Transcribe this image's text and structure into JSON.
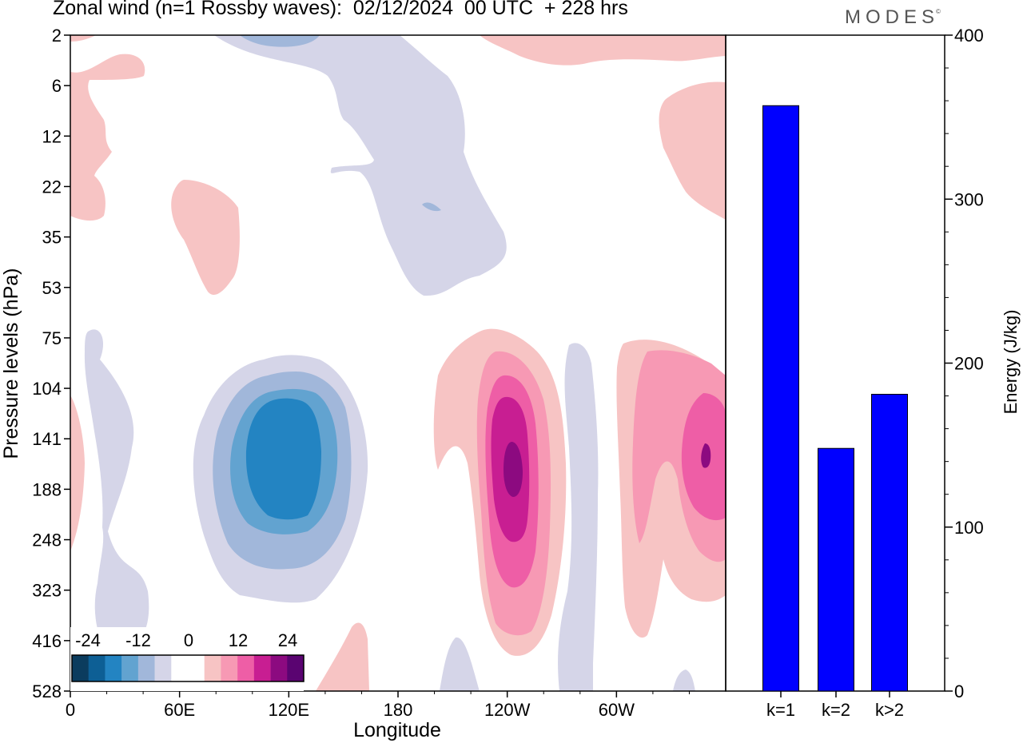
{
  "header": {
    "title": "Zonal wind (n=1 Rossby waves):  02/12/2024  00 UTC  + 228 hrs",
    "logo": "MODES",
    "logo_mark": "©"
  },
  "chart_data": [
    {
      "type": "heatmap",
      "title": "Zonal wind (n=1 Rossby waves):  02/12/2024  00 UTC  + 228 hrs",
      "xlabel": "Longitude",
      "ylabel": "Pressure levels (hPa)",
      "x_ticks": [
        "0",
        "60E",
        "120E",
        "180",
        "120W",
        "60W"
      ],
      "y_ticks": [
        "2",
        "6",
        "12",
        "22",
        "35",
        "53",
        "75",
        "104",
        "141",
        "188",
        "248",
        "323",
        "416",
        "528"
      ],
      "y_scale": "log",
      "colorbar": {
        "tick_labels": [
          "-24",
          "-12",
          "0",
          "12",
          "24"
        ],
        "levels": [
          -24,
          -20,
          -16,
          -12,
          -8,
          -4,
          0,
          4,
          8,
          12,
          16,
          20,
          24
        ],
        "colors": [
          "#0b3c5e",
          "#0d5f95",
          "#2384c2",
          "#62a3d0",
          "#a1b7da",
          "#d5d5e8",
          "#ffffff",
          "#ffffff",
          "#f7c4c4",
          "#f799b4",
          "#ee5ea6",
          "#c81e92",
          "#8c0a80",
          "#5a0471"
        ]
      }
    },
    {
      "type": "bar",
      "categories": [
        "k=1",
        "k=2",
        "k>2"
      ],
      "values": [
        357,
        148,
        181
      ],
      "ylabel": "Energy (J/kg)",
      "y_ticks": [
        "0",
        "100",
        "200",
        "300",
        "400"
      ],
      "ylim": [
        0,
        400
      ],
      "bar_color": "#0000ff"
    }
  ]
}
